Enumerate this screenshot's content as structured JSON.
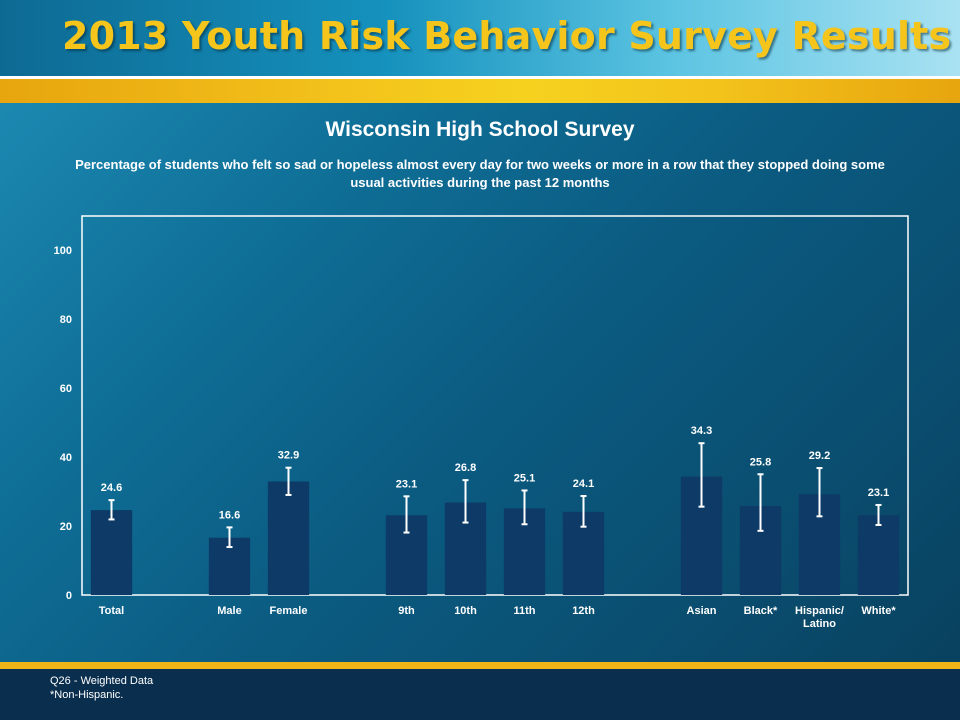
{
  "header": {
    "title": "2013 Youth Risk Behavior Survey Results"
  },
  "chart_data": {
    "type": "bar",
    "title": "Wisconsin High School Survey",
    "subtitle": "Percentage of students who felt so sad or hopeless almost every day for two weeks or more in a row that they stopped doing some usual activities during the past 12 months",
    "categories": [
      "Total",
      "Male",
      "Female",
      "9th",
      "10th",
      "11th",
      "12th",
      "Asian",
      "Black*",
      "Hispanic/ Latino",
      "White*"
    ],
    "category_lines": [
      [
        "Total"
      ],
      [
        "Male"
      ],
      [
        "Female"
      ],
      [
        "9th"
      ],
      [
        "10th"
      ],
      [
        "11th"
      ],
      [
        "12th"
      ],
      [
        "Asian"
      ],
      [
        "Black*"
      ],
      [
        "Hispanic/",
        "Latino"
      ],
      [
        "White*"
      ]
    ],
    "groups": [
      [
        0
      ],
      [
        1,
        2
      ],
      [
        3,
        4,
        5,
        6
      ],
      [
        7,
        8,
        9,
        10
      ]
    ],
    "values": [
      24.6,
      16.6,
      32.9,
      23.1,
      26.8,
      25.1,
      24.1,
      34.3,
      25.8,
      29.2,
      23.1
    ],
    "value_labels": [
      "24.6",
      "16.6",
      "32.9",
      "23.1",
      "26.8",
      "25.1",
      "24.1",
      "34.3",
      "25.8",
      "29.2",
      "23.1"
    ],
    "ci_lower": [
      21.9,
      13.9,
      29.0,
      18.1,
      21.0,
      20.5,
      19.8,
      25.6,
      18.6,
      22.8,
      20.3
    ],
    "ci_upper": [
      27.5,
      19.6,
      36.9,
      28.6,
      33.3,
      30.3,
      28.7,
      44.0,
      35.0,
      36.8,
      26.1
    ],
    "ylim": [
      0,
      100
    ],
    "yticks": [
      0,
      20,
      40,
      60,
      80,
      100
    ],
    "grid": false,
    "xlabel": "",
    "ylabel": "",
    "colors": {
      "bar": "#0d3a66",
      "error_bar": "#ffffff",
      "text": "#ffffff",
      "frame": "#ffffff"
    }
  },
  "footer": {
    "note1": "Q26 - Weighted Data",
    "note2": "*Non-Hispanic."
  }
}
